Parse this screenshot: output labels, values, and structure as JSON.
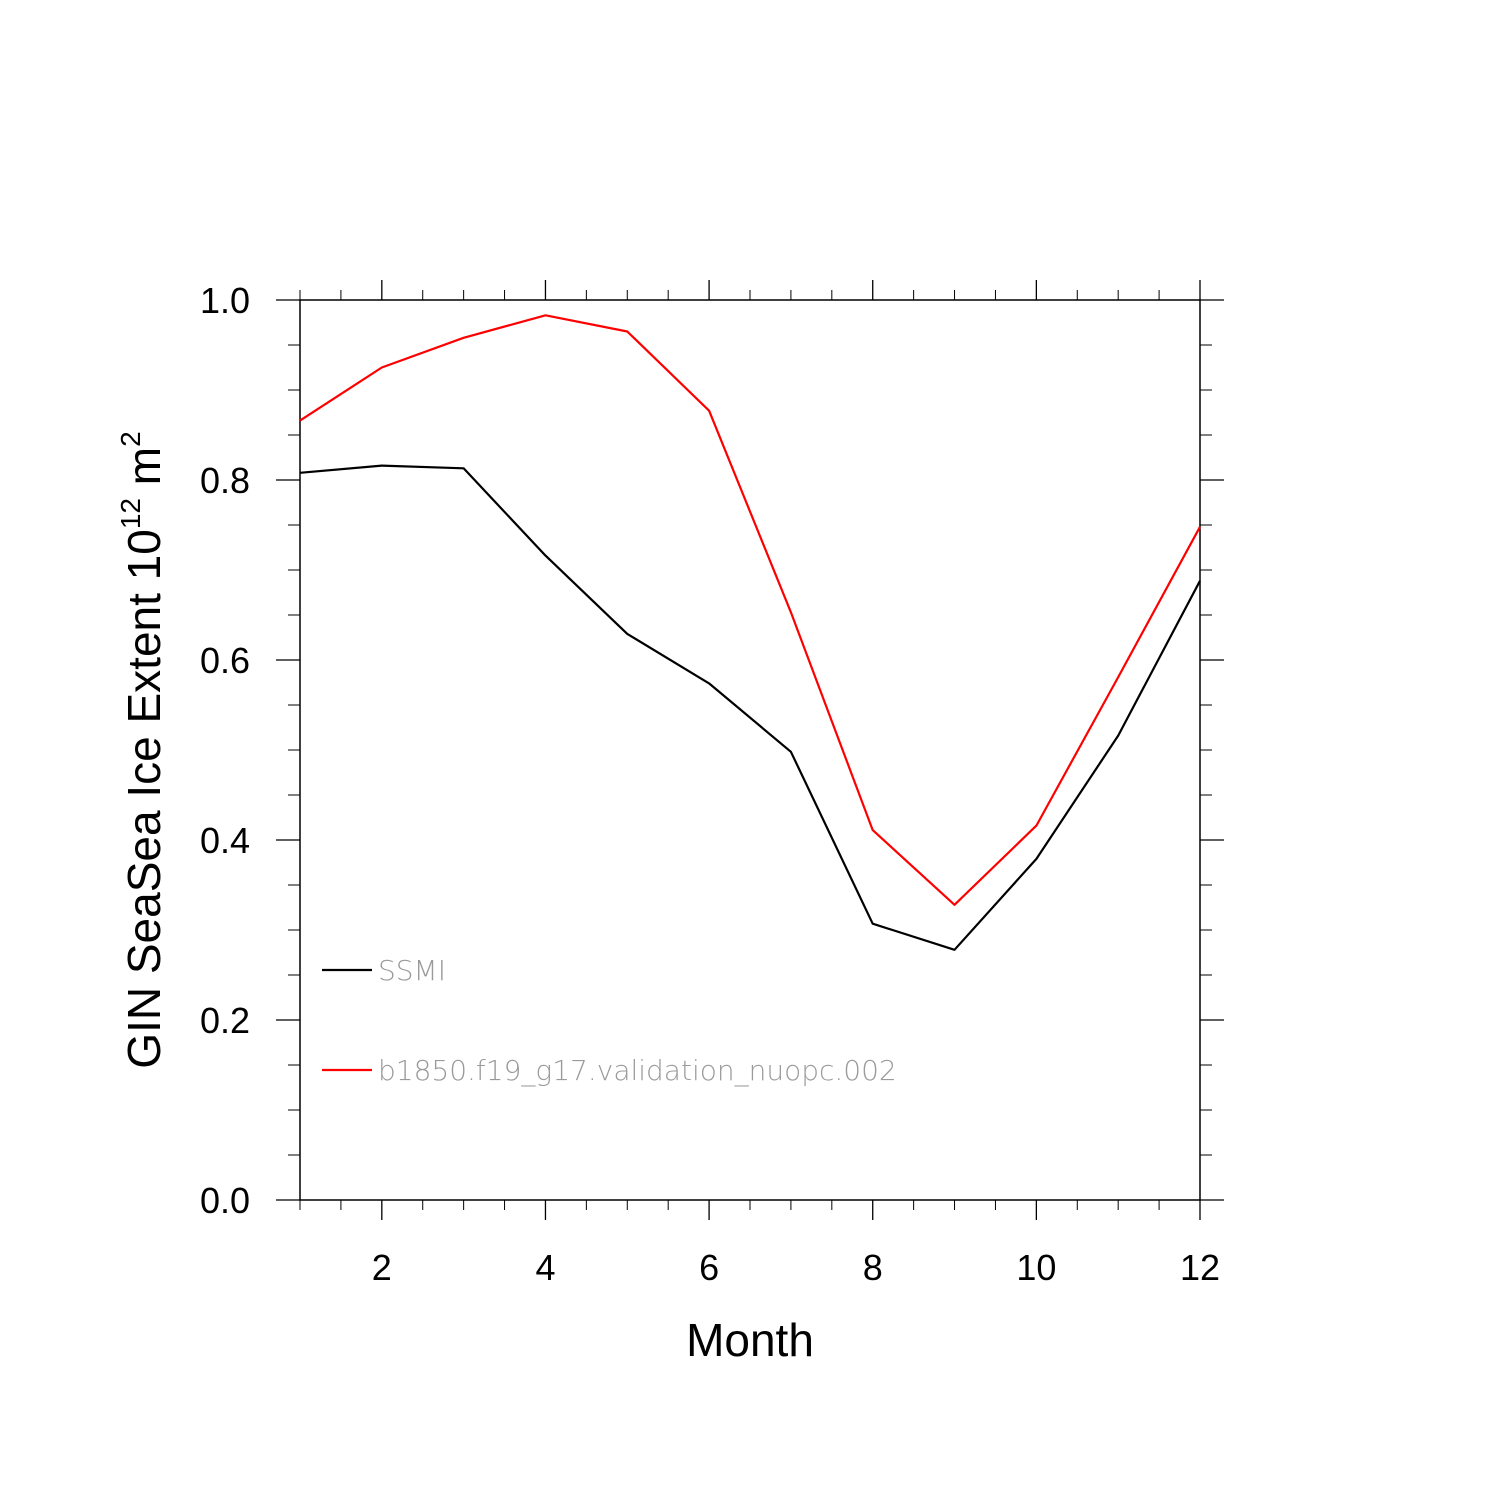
{
  "chart_data": {
    "type": "line",
    "xlabel": "Month",
    "ylabel": {
      "prefix": "GIN SeaSea Ice Extent 10",
      "exponent": "12",
      "unit": " m",
      "unit_exponent": "2"
    },
    "xlim": [
      1,
      12
    ],
    "ylim": [
      0,
      1
    ],
    "x_ticks": [
      2,
      4,
      6,
      8,
      10,
      12
    ],
    "x_tick_labels": [
      "2",
      "4",
      "6",
      "8",
      "10",
      "12"
    ],
    "y_ticks": [
      0,
      0.2,
      0.4,
      0.6,
      0.8,
      1.0
    ],
    "y_tick_labels": [
      "0.0",
      "0.2",
      "0.4",
      "0.6",
      "0.8",
      "1.0"
    ],
    "grid": false,
    "legend_position": "lower-left inside",
    "x": [
      1,
      2,
      3,
      4,
      5,
      6,
      7,
      8,
      9,
      10,
      11,
      12
    ],
    "series": [
      {
        "name": "SSMI",
        "color": "#000000",
        "values": [
          0.808,
          0.816,
          0.813,
          0.716,
          0.629,
          0.574,
          0.498,
          0.307,
          0.278,
          0.379,
          0.516,
          0.688
        ]
      },
      {
        "name": "b1850.f19_g17.validation_nuopc.002",
        "color": "#ff0000",
        "values": [
          0.866,
          0.925,
          0.958,
          0.983,
          0.965,
          0.877,
          0.653,
          0.411,
          0.328,
          0.416,
          0.581,
          0.748
        ]
      }
    ]
  }
}
